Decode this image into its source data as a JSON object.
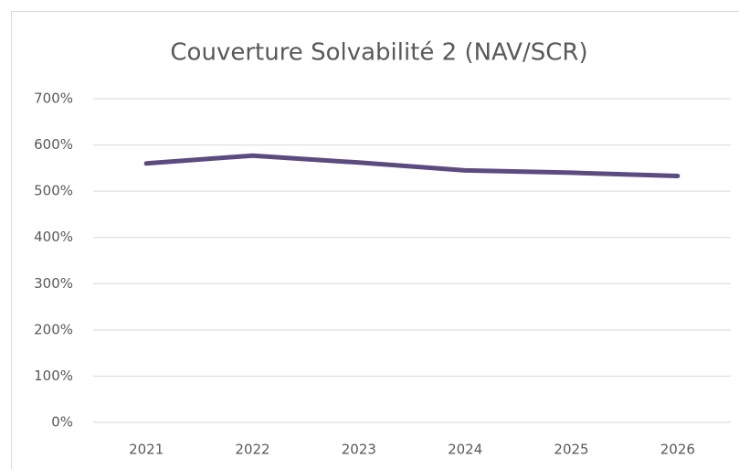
{
  "chart_data": {
    "type": "line",
    "title": "Couverture Solvabilité 2 (NAV/SCR)",
    "x": [
      "2021",
      "2022",
      "2023",
      "2024",
      "2025",
      "2026"
    ],
    "series": [
      {
        "color": "#5c4a80",
        "values": [
          560,
          577,
          562,
          545,
          540,
          533
        ]
      }
    ],
    "ylim": [
      0,
      700
    ],
    "yticks": [
      {
        "value": 0,
        "label": "0%"
      },
      {
        "value": 100,
        "label": "100%"
      },
      {
        "value": 200,
        "label": "200%"
      },
      {
        "value": 300,
        "label": "300%"
      },
      {
        "value": 400,
        "label": "400%"
      },
      {
        "value": 500,
        "label": "500%"
      },
      {
        "value": 600,
        "label": "600%"
      },
      {
        "value": 700,
        "label": "700%"
      }
    ],
    "grid": true
  }
}
